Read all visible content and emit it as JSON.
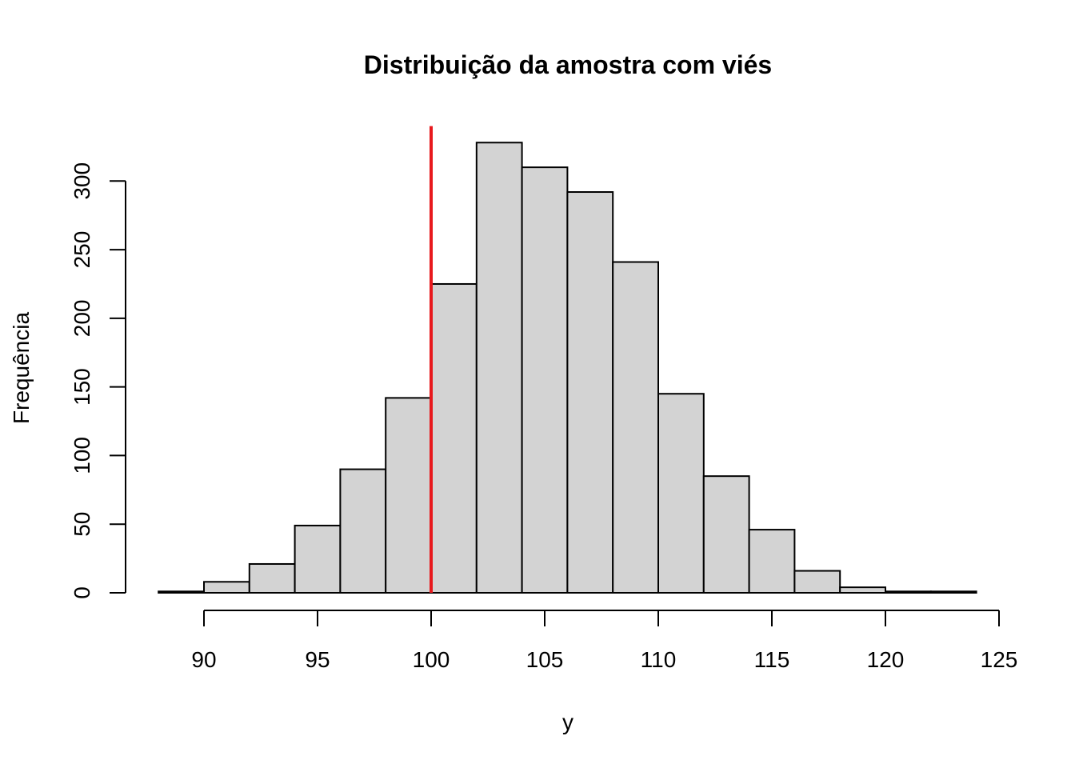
{
  "chart_data": {
    "type": "bar",
    "title": "Distribuição da amostra com viés",
    "xlabel": "y",
    "ylabel": "Frequência",
    "bin_edges": [
      88,
      90,
      92,
      94,
      96,
      98,
      100,
      102,
      104,
      106,
      108,
      110,
      112,
      114,
      116,
      118,
      120,
      122,
      124
    ],
    "values": [
      1,
      8,
      21,
      49,
      90,
      142,
      225,
      328,
      310,
      292,
      241,
      145,
      85,
      46,
      16,
      4,
      1,
      1
    ],
    "xlim": [
      88,
      125
    ],
    "ylim": [
      0,
      340
    ],
    "x_ticks": [
      "90",
      "95",
      "100",
      "105",
      "110",
      "115",
      "120",
      "125"
    ],
    "y_ticks": [
      "0",
      "50",
      "100",
      "150",
      "200",
      "250",
      "300"
    ],
    "reference_line": {
      "x": 100,
      "color": "#e8191d"
    },
    "bar_color": "#d3d3d3",
    "grid": false
  }
}
